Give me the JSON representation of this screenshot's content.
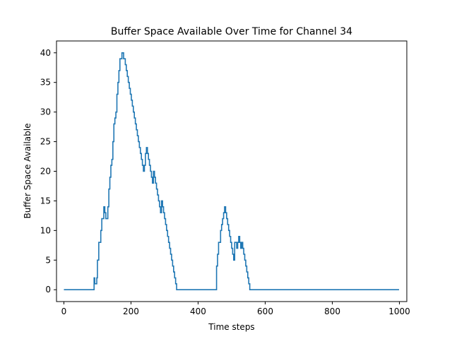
{
  "chart_data": {
    "type": "line",
    "title": "Buffer Space Available Over Time for Channel 34",
    "xlabel": "Time steps",
    "ylabel": "Buffer Space Available",
    "xlim": [
      -22,
      1022
    ],
    "ylim": [
      -2,
      42
    ],
    "xticks": [
      0,
      200,
      400,
      600,
      800,
      1000
    ],
    "yticks": [
      0,
      5,
      10,
      15,
      20,
      25,
      30,
      35,
      40
    ],
    "grid": false,
    "legend": "none",
    "series": [
      {
        "color": "#1f77b4",
        "step": true,
        "x": [
          0,
          88,
          90,
          92,
          95,
          98,
          100,
          102,
          104,
          107,
          110,
          113,
          116,
          119,
          122,
          125,
          128,
          131,
          134,
          137,
          140,
          143,
          146,
          149,
          152,
          155,
          158,
          161,
          164,
          167,
          170,
          173,
          176,
          178,
          180,
          183,
          186,
          189,
          192,
          195,
          198,
          201,
          204,
          207,
          210,
          213,
          216,
          219,
          222,
          225,
          228,
          231,
          234,
          237,
          240,
          243,
          246,
          249,
          252,
          255,
          258,
          261,
          264,
          267,
          270,
          273,
          276,
          279,
          282,
          285,
          288,
          291,
          294,
          297,
          300,
          303,
          306,
          309,
          312,
          315,
          318,
          321,
          324,
          327,
          330,
          333,
          336,
          339,
          342,
          345,
          348,
          351,
          354,
          357,
          360,
          363,
          366,
          369,
          372,
          375,
          378,
          381,
          384,
          387,
          390,
          393,
          396,
          399,
          402,
          405,
          410,
          440,
          455,
          458,
          461,
          464,
          467,
          470,
          473,
          476,
          479,
          482,
          485,
          488,
          491,
          494,
          497,
          500,
          503,
          506,
          509,
          512,
          515,
          518,
          521,
          524,
          527,
          530,
          533,
          536,
          539,
          542,
          545,
          548,
          551,
          554,
          557,
          560,
          563,
          566,
          590,
          620,
          655,
          660,
          663,
          666,
          669,
          672,
          675,
          678,
          681,
          684,
          687,
          690,
          693,
          696,
          699,
          702,
          705,
          708,
          711,
          714,
          717,
          720,
          723,
          726,
          729,
          732,
          735,
          738,
          741,
          744,
          747,
          750,
          753,
          756,
          759,
          762,
          765,
          768,
          771,
          774,
          777,
          780,
          783,
          786,
          789,
          792,
          795,
          798,
          801,
          804,
          807,
          810,
          813,
          816,
          819,
          822,
          825,
          828,
          831,
          834,
          837,
          840,
          843,
          846,
          870,
          885,
          888,
          891,
          894,
          897,
          900,
          903,
          906,
          909,
          912,
          915,
          918,
          921,
          924,
          927,
          930,
          933,
          936,
          939,
          945,
          960,
          963,
          966,
          969,
          972,
          975,
          978,
          981,
          984,
          987,
          990,
          993,
          996,
          999
        ],
        "y": [
          0,
          0,
          2,
          1,
          1,
          2,
          5,
          5,
          8,
          8,
          10,
          12,
          12,
          14,
          13,
          12,
          12,
          14,
          17,
          19,
          21,
          22,
          25,
          28,
          29,
          30,
          33,
          35,
          37,
          39,
          39,
          40,
          40,
          39,
          39,
          38,
          37,
          36,
          35,
          34,
          33,
          32,
          31,
          30,
          29,
          28,
          27,
          26,
          25,
          24,
          23,
          22,
          21,
          20,
          21,
          23,
          24,
          23,
          22,
          21,
          20,
          19,
          18,
          20,
          19,
          18,
          17,
          16,
          15,
          14,
          13,
          15,
          14,
          13,
          12,
          11,
          10,
          9,
          8,
          7,
          6,
          5,
          4,
          3,
          2,
          1,
          0,
          0,
          0,
          0,
          0,
          0,
          0,
          0,
          0,
          0,
          0,
          0,
          0,
          0,
          0,
          0,
          0,
          0,
          0,
          0,
          0,
          0,
          0,
          0,
          0,
          0,
          4,
          6,
          8,
          8,
          10,
          11,
          12,
          13,
          14,
          13,
          12,
          11,
          10,
          9,
          8,
          7,
          6,
          5,
          8,
          8,
          7,
          8,
          9,
          8,
          7,
          8,
          7,
          6,
          5,
          4,
          3,
          2,
          1,
          0,
          0,
          0,
          0,
          0,
          0,
          0,
          0,
          0,
          0,
          0,
          0,
          0,
          0,
          0,
          0,
          0,
          0,
          0,
          0,
          0,
          0,
          0,
          0,
          0,
          0,
          0,
          0,
          0,
          0,
          0,
          0,
          0,
          0,
          0,
          0,
          0,
          0,
          0,
          0,
          0,
          0,
          0,
          0,
          0,
          0,
          0,
          0,
          0,
          0,
          0,
          0,
          0,
          0,
          0,
          0,
          0,
          0,
          0,
          0,
          0,
          0,
          0,
          0,
          0,
          0,
          0,
          0,
          0,
          0,
          0,
          0,
          0,
          0,
          0,
          0,
          0,
          0,
          0,
          0,
          0,
          0,
          0,
          0,
          0,
          0,
          0,
          0,
          0,
          0,
          0,
          0,
          0,
          0,
          0,
          0,
          0,
          0,
          0,
          0,
          0,
          0,
          0,
          0,
          0,
          0
        ]
      }
    ]
  }
}
